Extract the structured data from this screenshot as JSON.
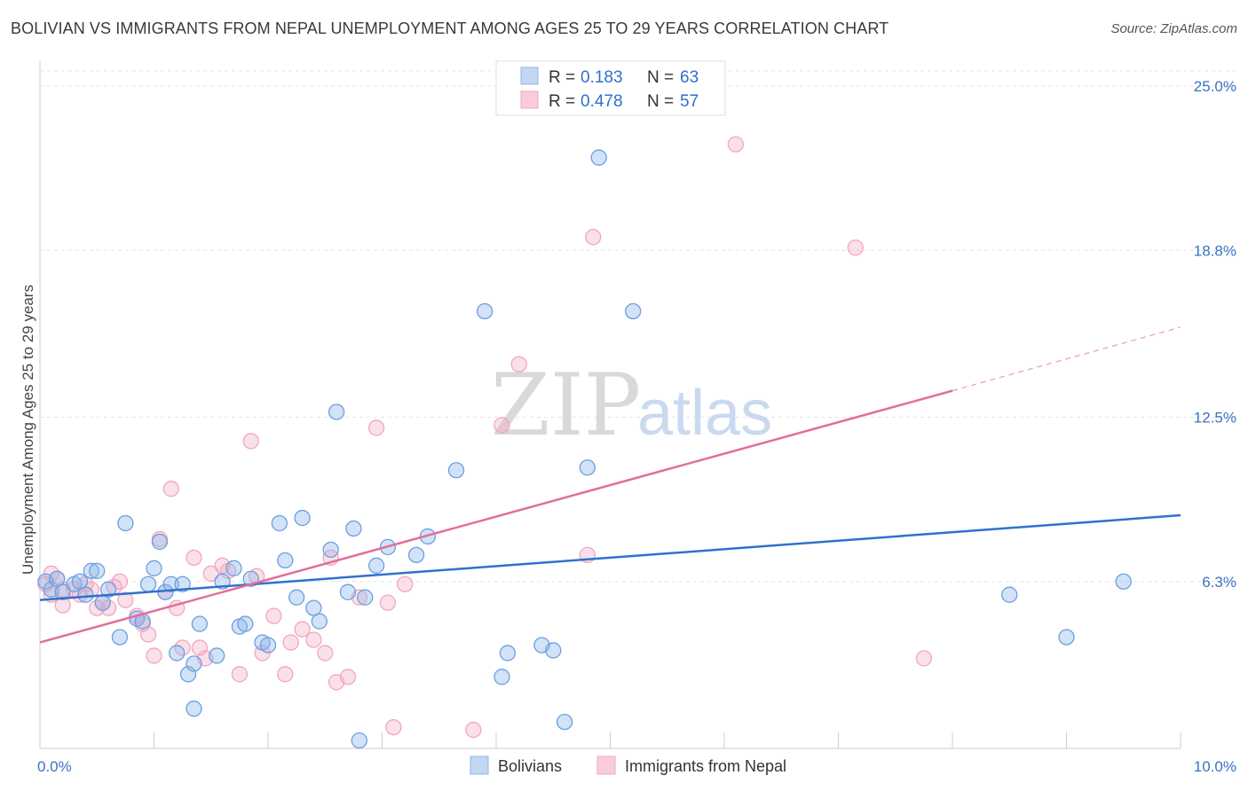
{
  "title": "BOLIVIAN VS IMMIGRANTS FROM NEPAL UNEMPLOYMENT AMONG AGES 25 TO 29 YEARS CORRELATION CHART",
  "source": "Source: ZipAtlas.com",
  "watermark": {
    "zip": "ZIP",
    "atlas": "atlas"
  },
  "legend": {
    "rows": [
      {
        "r_label": "R =",
        "r_value": "0.183",
        "n_label": "N =",
        "n_value": "63"
      },
      {
        "r_label": "R =",
        "r_value": "0.478",
        "n_label": "N =",
        "n_value": "57"
      }
    ]
  },
  "bottom_legend": [
    "Bolivians",
    "Immigrants from Nepal"
  ],
  "colors": {
    "bolivians": "#8fb6ea",
    "bolivians_line": "#2f72cc",
    "nepal": "#f2a6c1",
    "nepal_line": "#e06f9b"
  },
  "chart_data": {
    "type": "scatter",
    "title": "BOLIVIAN VS IMMIGRANTS FROM NEPAL UNEMPLOYMENT AMONG AGES 25 TO 29 YEARS CORRELATION CHART",
    "xlabel": "",
    "ylabel": "Unemployment Among Ages 25 to 29 years",
    "xlim": [
      0,
      10
    ],
    "ylim": [
      0,
      25.0
    ],
    "x_tick_labels": [
      "0.0%",
      "10.0%"
    ],
    "y_ticks": [
      6.3,
      12.5,
      18.8,
      25.0
    ],
    "y_tick_labels": [
      "6.3%",
      "12.5%",
      "18.8%",
      "25.0%"
    ],
    "grid": true,
    "legend_position": "top-center",
    "series": [
      {
        "name": "Bolivians",
        "trend": {
          "x": [
            0,
            10
          ],
          "y": [
            5.6,
            8.8
          ]
        },
        "points": [
          [
            0.05,
            6.3
          ],
          [
            0.1,
            6.0
          ],
          [
            0.15,
            6.4
          ],
          [
            0.2,
            5.9
          ],
          [
            0.3,
            6.2
          ],
          [
            0.35,
            6.3
          ],
          [
            0.4,
            5.8
          ],
          [
            0.45,
            6.7
          ],
          [
            0.5,
            6.7
          ],
          [
            0.55,
            5.5
          ],
          [
            0.6,
            6.0
          ],
          [
            0.7,
            4.2
          ],
          [
            0.75,
            8.5
          ],
          [
            0.85,
            4.9
          ],
          [
            0.9,
            4.8
          ],
          [
            0.95,
            6.2
          ],
          [
            1.0,
            6.8
          ],
          [
            1.05,
            7.8
          ],
          [
            1.1,
            5.9
          ],
          [
            1.15,
            6.2
          ],
          [
            1.2,
            3.6
          ],
          [
            1.25,
            6.2
          ],
          [
            1.3,
            2.8
          ],
          [
            1.35,
            3.2
          ],
          [
            1.4,
            4.7
          ],
          [
            1.55,
            3.5
          ],
          [
            1.6,
            6.3
          ],
          [
            1.7,
            6.8
          ],
          [
            1.75,
            4.6
          ],
          [
            1.8,
            4.7
          ],
          [
            1.85,
            6.4
          ],
          [
            1.95,
            4.0
          ],
          [
            2.0,
            3.9
          ],
          [
            2.1,
            8.5
          ],
          [
            2.15,
            7.1
          ],
          [
            2.25,
            5.7
          ],
          [
            2.3,
            8.7
          ],
          [
            2.4,
            5.3
          ],
          [
            2.45,
            4.8
          ],
          [
            2.55,
            7.5
          ],
          [
            2.6,
            12.7
          ],
          [
            2.7,
            5.9
          ],
          [
            2.75,
            8.3
          ],
          [
            2.85,
            5.7
          ],
          [
            2.95,
            6.9
          ],
          [
            3.05,
            7.6
          ],
          [
            3.3,
            7.3
          ],
          [
            3.4,
            8.0
          ],
          [
            3.65,
            10.5
          ],
          [
            3.9,
            16.5
          ],
          [
            4.1,
            3.6
          ],
          [
            4.05,
            2.7
          ],
          [
            4.4,
            3.9
          ],
          [
            4.5,
            3.7
          ],
          [
            4.6,
            1.0
          ],
          [
            4.8,
            10.6
          ],
          [
            4.9,
            22.3
          ],
          [
            5.2,
            16.5
          ],
          [
            8.5,
            5.8
          ],
          [
            9.0,
            4.2
          ],
          [
            9.5,
            6.3
          ],
          [
            1.35,
            1.5
          ],
          [
            2.8,
            0.3
          ]
        ]
      },
      {
        "name": "Immigrants from Nepal",
        "trend": {
          "x": [
            0,
            8.0
          ],
          "y": [
            4.0,
            13.5
          ]
        },
        "trend_dashed": {
          "x": [
            8.0,
            10.0
          ],
          "y": [
            13.5,
            15.9
          ]
        },
        "points": [
          [
            0.05,
            6.2
          ],
          [
            0.1,
            5.8
          ],
          [
            0.15,
            6.4
          ],
          [
            0.2,
            5.4
          ],
          [
            0.3,
            6.0
          ],
          [
            0.35,
            5.8
          ],
          [
            0.45,
            6.0
          ],
          [
            0.5,
            5.3
          ],
          [
            0.55,
            5.5
          ],
          [
            0.6,
            5.3
          ],
          [
            0.65,
            6.1
          ],
          [
            0.7,
            6.3
          ],
          [
            0.75,
            5.6
          ],
          [
            0.85,
            5.0
          ],
          [
            0.9,
            4.7
          ],
          [
            0.95,
            4.3
          ],
          [
            1.0,
            3.5
          ],
          [
            1.05,
            7.9
          ],
          [
            1.1,
            5.9
          ],
          [
            1.15,
            9.8
          ],
          [
            1.2,
            5.3
          ],
          [
            1.25,
            3.8
          ],
          [
            1.35,
            7.2
          ],
          [
            1.4,
            3.8
          ],
          [
            1.45,
            3.4
          ],
          [
            1.5,
            6.6
          ],
          [
            1.6,
            6.9
          ],
          [
            1.65,
            6.7
          ],
          [
            1.75,
            2.8
          ],
          [
            1.85,
            11.6
          ],
          [
            1.9,
            6.5
          ],
          [
            1.95,
            3.6
          ],
          [
            2.05,
            5.0
          ],
          [
            2.15,
            2.8
          ],
          [
            2.2,
            4.0
          ],
          [
            2.3,
            4.5
          ],
          [
            2.4,
            4.1
          ],
          [
            2.5,
            3.6
          ],
          [
            2.55,
            7.2
          ],
          [
            2.6,
            2.5
          ],
          [
            2.7,
            2.7
          ],
          [
            2.8,
            5.7
          ],
          [
            2.95,
            12.1
          ],
          [
            3.05,
            5.5
          ],
          [
            3.1,
            0.8
          ],
          [
            3.2,
            6.2
          ],
          [
            3.8,
            0.7
          ],
          [
            4.05,
            12.2
          ],
          [
            4.2,
            14.5
          ],
          [
            4.8,
            7.3
          ],
          [
            4.85,
            19.3
          ],
          [
            6.1,
            22.8
          ],
          [
            7.15,
            18.9
          ],
          [
            7.75,
            3.4
          ],
          [
            0.1,
            6.6
          ],
          [
            0.2,
            6.0
          ],
          [
            0.4,
            6.2
          ]
        ]
      }
    ]
  }
}
